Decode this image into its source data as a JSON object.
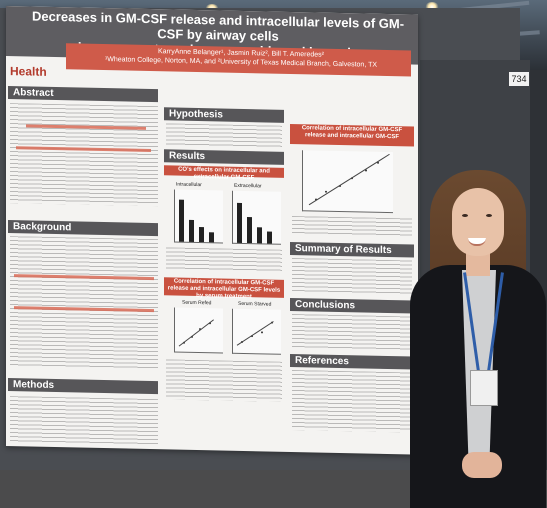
{
  "scene": {
    "booth_number": "734"
  },
  "poster": {
    "title_line1": "Decreases in GM-CSF release and intracellular levels of GM-CSF by airway cells",
    "title_line2": "in response to carbon monoxide and hypoxia",
    "authors": "KarryAnne Belanger¹, Jasmin Ruiz², Bill T. Ameredes²",
    "affiliations": "¹Wheaton College, Norton, MA, and ²University of Texas Medical Branch, Galveston, TX",
    "logo_text": "Health",
    "sections": {
      "abstract": "Abstract",
      "background": "Background",
      "methods": "Methods",
      "hypothesis": "Hypothesis",
      "results": "Results",
      "summary": "Summary of Results",
      "conclusions": "Conclusions",
      "references": "References",
      "cor_top": "Correlation of intracellular GM-CSF release and intracellular GM-CSF",
      "cor_mid": "Correlation of intracellular GM-CSF release and intracellular GM-CSF levels by serum treatment",
      "effects": "CO's effects on intracellular and extracellular GM-CSF"
    },
    "chart_labels": {
      "intracellular": "Intracellular",
      "extracellular": "Extracellular",
      "serum_refed": "Serum Refed",
      "serum_starved": "Serum Starved"
    }
  },
  "colors": {
    "accent_red": "#c9513f",
    "header_gray": "#575659",
    "lanyard_blue": "#2e5da8"
  }
}
